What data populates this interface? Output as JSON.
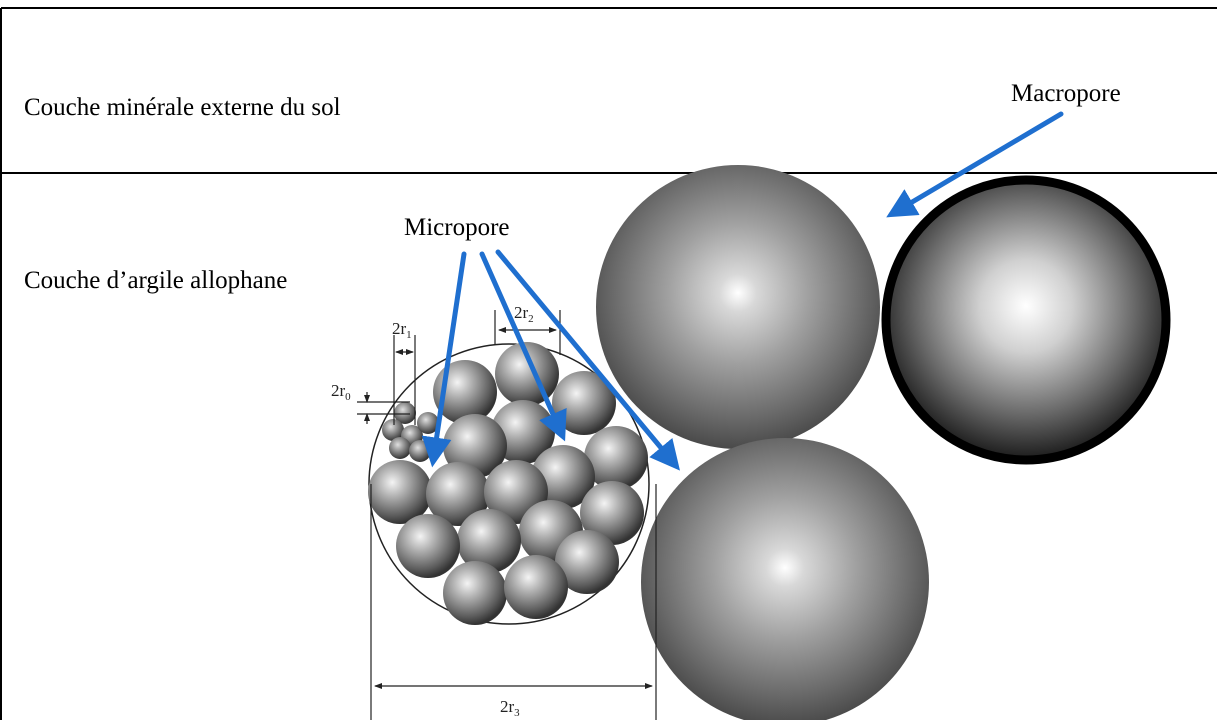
{
  "labels": {
    "top_layer": "Couche minérale externe du sol",
    "macropore": "Macropore",
    "micropore": "Micropore",
    "clay_layer": "Couche d’argile allophane"
  },
  "dimensions": [
    {
      "id": "r0",
      "base": "2r",
      "sub": "0"
    },
    {
      "id": "r1",
      "base": "2r",
      "sub": "1"
    },
    {
      "id": "r2",
      "base": "2r",
      "sub": "2"
    },
    {
      "id": "r3",
      "base": "2r",
      "sub": "3"
    }
  ],
  "colors": {
    "arrow": "#1f6fcf",
    "border": "#000000",
    "sphere_dark": "#4a4a4a",
    "sphere_light": "#ffffff"
  }
}
